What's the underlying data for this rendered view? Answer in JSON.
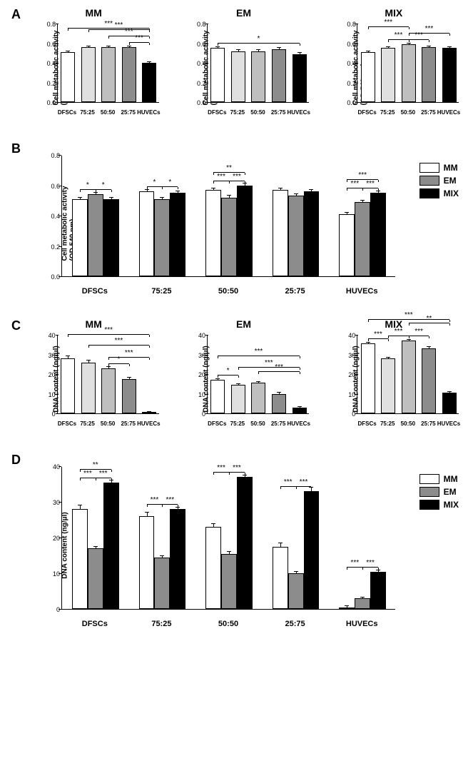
{
  "panels": {
    "A": {
      "ylabel": "Cell metabolic activity\n(OD 540 nm)",
      "ylim": [
        0,
        0.8
      ],
      "ytick_step": 0.2,
      "categories": [
        "DFSCs",
        "75:25",
        "50:50",
        "25:75",
        "HUVECs"
      ],
      "charts": [
        {
          "title": "MM",
          "values": [
            0.51,
            0.56,
            0.56,
            0.56,
            0.4
          ],
          "err": [
            0.01,
            0.01,
            0.01,
            0.01,
            0.01
          ],
          "colors": [
            "#ffffff",
            "#e0e0e0",
            "#bfbfbf",
            "#8c8c8c",
            "#000000"
          ],
          "sig": [
            {
              "from": 0,
              "to": 4,
              "label": "***",
              "lvl": 3
            },
            {
              "from": 1,
              "to": 4,
              "label": "***",
              "lvl": 2
            },
            {
              "from": 2,
              "to": 4,
              "label": "***",
              "lvl": 1
            },
            {
              "from": 3,
              "to": 4,
              "label": "***",
              "lvl": 0
            }
          ]
        },
        {
          "title": "EM",
          "values": [
            0.55,
            0.52,
            0.52,
            0.54,
            0.49
          ],
          "err": [
            0.01,
            0.01,
            0.01,
            0.01,
            0.01
          ],
          "colors": [
            "#ffffff",
            "#e0e0e0",
            "#bfbfbf",
            "#8c8c8c",
            "#000000"
          ],
          "sig": [
            {
              "from": 0,
              "to": 4,
              "label": "*",
              "lvl": 0
            }
          ]
        },
        {
          "title": "MIX",
          "values": [
            0.51,
            0.55,
            0.59,
            0.56,
            0.55
          ],
          "err": [
            0.01,
            0.01,
            0.01,
            0.01,
            0.01
          ],
          "colors": [
            "#ffffff",
            "#e0e0e0",
            "#bfbfbf",
            "#8c8c8c",
            "#000000"
          ],
          "sig": [
            {
              "from": 0,
              "to": 2,
              "label": "***",
              "lvl": 2
            },
            {
              "from": 1,
              "to": 2,
              "label": "***",
              "lvl": 0
            },
            {
              "from": 2,
              "to": 3,
              "label": "***",
              "lvl": 0
            },
            {
              "from": 2,
              "to": 4,
              "label": "***",
              "lvl": 1
            }
          ]
        }
      ]
    },
    "B": {
      "ylabel": "Cell metabolic activity\n(OD 540 nm)",
      "ylim": [
        0,
        0.8
      ],
      "ytick_step": 0.2,
      "categories": [
        "DFSCs",
        "75:25",
        "50:50",
        "25:75",
        "HUVECs"
      ],
      "series": [
        "MM",
        "EM",
        "MIX"
      ],
      "colors": [
        "#ffffff",
        "#8c8c8c",
        "#000000"
      ],
      "values": [
        [
          0.51,
          0.54,
          0.51
        ],
        [
          0.56,
          0.51,
          0.55
        ],
        [
          0.57,
          0.52,
          0.6
        ],
        [
          0.57,
          0.53,
          0.56
        ],
        [
          0.41,
          0.49,
          0.55
        ]
      ],
      "err": [
        [
          0.01,
          0.01,
          0.01
        ],
        [
          0.01,
          0.01,
          0.01
        ],
        [
          0.01,
          0.01,
          0.01
        ],
        [
          0.01,
          0.01,
          0.01
        ],
        [
          0.01,
          0.01,
          0.01
        ]
      ],
      "sig": [
        {
          "cat": 0,
          "from": 0,
          "to": 1,
          "label": "*",
          "lvl": 0
        },
        {
          "cat": 0,
          "from": 1,
          "to": 2,
          "label": "*",
          "lvl": 0
        },
        {
          "cat": 1,
          "from": 0,
          "to": 1,
          "label": "*",
          "lvl": 0
        },
        {
          "cat": 1,
          "from": 1,
          "to": 2,
          "label": "*",
          "lvl": 0
        },
        {
          "cat": 2,
          "from": 0,
          "to": 1,
          "label": "***",
          "lvl": 0
        },
        {
          "cat": 2,
          "from": 1,
          "to": 2,
          "label": "***",
          "lvl": 0
        },
        {
          "cat": 2,
          "from": 0,
          "to": 2,
          "label": "**",
          "lvl": 1
        },
        {
          "cat": 4,
          "from": 0,
          "to": 1,
          "label": "***",
          "lvl": 0
        },
        {
          "cat": 4,
          "from": 1,
          "to": 2,
          "label": "***",
          "lvl": 0
        },
        {
          "cat": 4,
          "from": 0,
          "to": 2,
          "label": "***",
          "lvl": 1
        }
      ]
    },
    "C": {
      "ylabel": "DNA content (ng/μl)",
      "ylim": [
        0,
        40
      ],
      "ytick_step": 10,
      "categories": [
        "DFSCs",
        "75:25",
        "50:50",
        "25:75",
        "HUVECs"
      ],
      "charts": [
        {
          "title": "MM",
          "values": [
            28,
            26,
            23,
            17.5,
            0.5
          ],
          "err": [
            1,
            1,
            0.8,
            0.8,
            0.3
          ],
          "colors": [
            "#ffffff",
            "#e0e0e0",
            "#bfbfbf",
            "#8c8c8c",
            "#000000"
          ],
          "sig": [
            {
              "from": 0,
              "to": 4,
              "label": "***",
              "lvl": 3
            },
            {
              "from": 1,
              "to": 4,
              "label": "***",
              "lvl": 2
            },
            {
              "from": 2,
              "to": 4,
              "label": "***",
              "lvl": 1
            },
            {
              "from": 2,
              "to": 3,
              "label": "*",
              "lvl": 0
            }
          ]
        },
        {
          "title": "EM",
          "values": [
            17,
            14.5,
            15.5,
            10,
            3
          ],
          "err": [
            0.6,
            0.5,
            0.6,
            0.5,
            0.4
          ],
          "colors": [
            "#ffffff",
            "#e0e0e0",
            "#bfbfbf",
            "#8c8c8c",
            "#000000"
          ],
          "sig": [
            {
              "from": 0,
              "to": 4,
              "label": "***",
              "lvl": 3
            },
            {
              "from": 1,
              "to": 4,
              "label": "***",
              "lvl": 2
            },
            {
              "from": 2,
              "to": 4,
              "label": "***",
              "lvl": 1
            },
            {
              "from": 0,
              "to": 1,
              "label": "*",
              "lvl": 0
            }
          ]
        },
        {
          "title": "MIX",
          "values": [
            35.5,
            28,
            37,
            33,
            10.5
          ],
          "err": [
            0.5,
            0.5,
            0.5,
            0.8,
            0.5
          ],
          "colors": [
            "#ffffff",
            "#e0e0e0",
            "#bfbfbf",
            "#8c8c8c",
            "#000000"
          ],
          "sig": [
            {
              "from": 0,
              "to": 4,
              "label": "***",
              "lvl": 3
            },
            {
              "from": 0,
              "to": 1,
              "label": "***",
              "lvl": 0
            },
            {
              "from": 1,
              "to": 2,
              "label": "***",
              "lvl": 0
            },
            {
              "from": 2,
              "to": 3,
              "label": "***",
              "lvl": 0
            },
            {
              "from": 2,
              "to": 4,
              "label": "**",
              "lvl": 2
            }
          ]
        }
      ]
    },
    "D": {
      "ylabel": "DNA content (ng/μl)",
      "ylim": [
        0,
        40
      ],
      "ytick_step": 10,
      "categories": [
        "DFSCs",
        "75:25",
        "50:50",
        "25:75",
        "HUVECs"
      ],
      "series": [
        "MM",
        "EM",
        "MIX"
      ],
      "colors": [
        "#ffffff",
        "#8c8c8c",
        "#000000"
      ],
      "values": [
        [
          28,
          17,
          35.5
        ],
        [
          26,
          14.5,
          28
        ],
        [
          23,
          15.5,
          37
        ],
        [
          17.5,
          10,
          33
        ],
        [
          0.5,
          3,
          10.5
        ]
      ],
      "err": [
        [
          1,
          0.5,
          0.5
        ],
        [
          1,
          0.4,
          0.5
        ],
        [
          0.8,
          0.6,
          0.4
        ],
        [
          1,
          0.5,
          1
        ],
        [
          0.3,
          0.3,
          0.4
        ]
      ],
      "sig": [
        {
          "cat": 0,
          "from": 0,
          "to": 1,
          "label": "***",
          "lvl": 0
        },
        {
          "cat": 0,
          "from": 1,
          "to": 2,
          "label": "***",
          "lvl": 0
        },
        {
          "cat": 0,
          "from": 0,
          "to": 2,
          "label": "**",
          "lvl": 1
        },
        {
          "cat": 1,
          "from": 0,
          "to": 1,
          "label": "***",
          "lvl": 0
        },
        {
          "cat": 1,
          "from": 1,
          "to": 2,
          "label": "***",
          "lvl": 0
        },
        {
          "cat": 2,
          "from": 0,
          "to": 1,
          "label": "***",
          "lvl": 0
        },
        {
          "cat": 2,
          "from": 1,
          "to": 2,
          "label": "***",
          "lvl": 0
        },
        {
          "cat": 3,
          "from": 0,
          "to": 1,
          "label": "***",
          "lvl": 0
        },
        {
          "cat": 3,
          "from": 1,
          "to": 2,
          "label": "***",
          "lvl": 0
        },
        {
          "cat": 4,
          "from": 0,
          "to": 1,
          "label": "***",
          "lvl": 0
        },
        {
          "cat": 4,
          "from": 1,
          "to": 2,
          "label": "***",
          "lvl": 0
        }
      ]
    }
  },
  "legend_labels": [
    "MM",
    "EM",
    "MIX"
  ],
  "legend_colors": [
    "#ffffff",
    "#8c8c8c",
    "#000000"
  ]
}
